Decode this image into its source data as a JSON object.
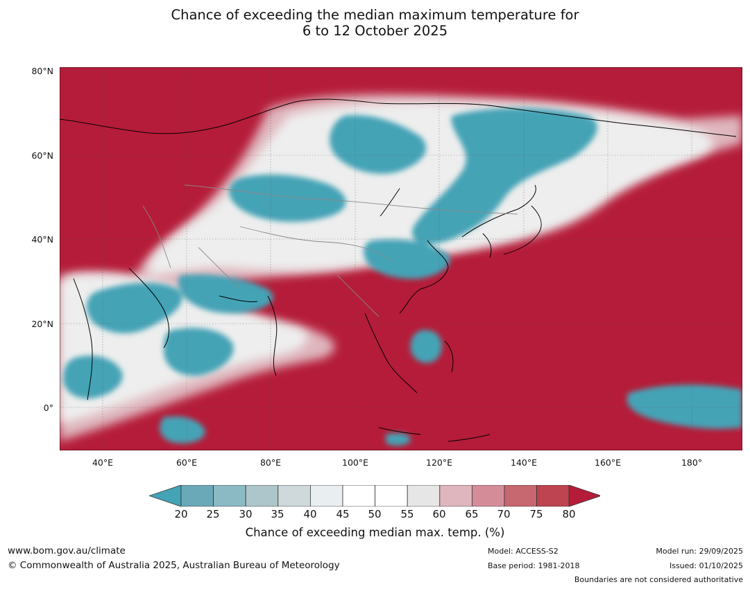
{
  "title": {
    "line1": "Chance of exceeding the median maximum temperature for",
    "line2": "6 to 12 October 2025"
  },
  "map": {
    "latitude_labels": [
      "80°N",
      "60°N",
      "40°N",
      "20°N",
      "0°"
    ],
    "longitude_labels": [
      "40°E",
      "60°E",
      "80°E",
      "100°E",
      "120°E",
      "140°E",
      "160°E",
      "180°"
    ],
    "colors": {
      "above_80": "#b51c39",
      "below_20": "#44a3b6",
      "near_50": "#ffffff",
      "coastline": "#000000",
      "border": "#888888"
    }
  },
  "colorbar": {
    "ticks": [
      "20",
      "25",
      "30",
      "35",
      "40",
      "45",
      "50",
      "55",
      "60",
      "65",
      "70",
      "75",
      "80"
    ],
    "colors": [
      "#44a3b6",
      "#6aa9b8",
      "#8bbac4",
      "#adc6cb",
      "#cfd9dc",
      "#e9eff1",
      "#ffffff",
      "#ffffff",
      "#e6e6e6",
      "#dfb6bd",
      "#d48d98",
      "#c7676f",
      "#bd4450",
      "#b51c39"
    ],
    "label": "Chance of exceeding median max. temp. (%)"
  },
  "footer": {
    "url": "www.bom.gov.au/climate",
    "copyright": "© Commonwealth of Australia 2025, Australian Bureau of Meteorology",
    "model": "Model: ACCESS-S2",
    "base_period": "Base period: 1981-2018",
    "model_run": "Model run: 29/09/2025",
    "issued": "Issued: 01/10/2025",
    "boundaries": "Boundaries are not considered authoritative"
  }
}
